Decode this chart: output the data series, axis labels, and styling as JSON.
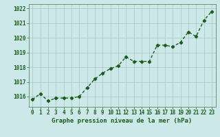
{
  "x": [
    0,
    1,
    2,
    3,
    4,
    5,
    6,
    7,
    8,
    9,
    10,
    11,
    12,
    13,
    14,
    15,
    16,
    17,
    18,
    19,
    20,
    21,
    22,
    23
  ],
  "y": [
    1015.8,
    1016.2,
    1015.7,
    1015.9,
    1015.9,
    1015.9,
    1016.0,
    1016.6,
    1017.2,
    1017.6,
    1017.9,
    1018.1,
    1018.7,
    1018.4,
    1018.4,
    1018.4,
    1019.5,
    1019.5,
    1019.4,
    1019.7,
    1020.4,
    1020.1,
    1021.2,
    1021.8
  ],
  "line_color": "#1a5c1a",
  "marker": "D",
  "marker_size": 2.2,
  "line_width": 1.0,
  "background_color": "#cce8e8",
  "grid_color": "#b0c8c8",
  "ylim": [
    1015.3,
    1022.3
  ],
  "yticks": [
    1016,
    1017,
    1018,
    1019,
    1020,
    1021,
    1022
  ],
  "xlim": [
    -0.5,
    23.5
  ],
  "xlabel": "Graphe pression niveau de la mer (hPa)",
  "xlabel_color": "#1a5c1a",
  "xlabel_fontsize": 6.5,
  "tick_color": "#1a5c1a",
  "tick_fontsize": 5.5,
  "spine_color": "#5a8a5a"
}
